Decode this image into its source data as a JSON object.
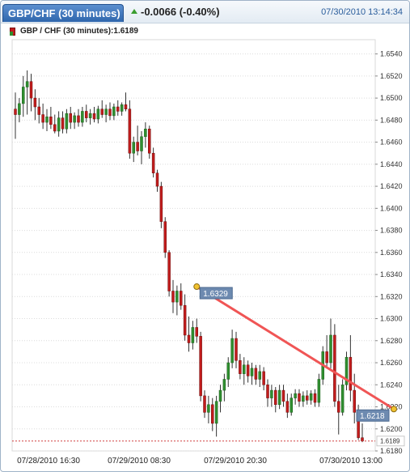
{
  "header": {
    "title": "GBP/CHF (30 minutes)",
    "change": "-0.0066 (-0.40%)",
    "datetime": "07/30/2010 13:14:34"
  },
  "legend": {
    "text": "GBP / CHF (30 minutes):1.6189"
  },
  "colors": {
    "up": "#2f8f2f",
    "down": "#c21c1c",
    "trendline": "#f05555",
    "label_bg": "#6d8ab0",
    "last_price_line": "#d04040"
  },
  "chart_data": {
    "type": "candlestick",
    "title": "GBP / CHF (30 minutes):1.6189",
    "ylim": [
      1.618,
      1.655
    ],
    "y_ticks": [
      "1.6540",
      "1.6520",
      "1.6500",
      "1.6480",
      "1.6460",
      "1.6440",
      "1.6420",
      "1.6400",
      "1.6380",
      "1.6360",
      "1.6340",
      "1.6320",
      "1.6300",
      "1.6280",
      "1.6260",
      "1.6240",
      "1.6220",
      "1.6200",
      "1.6180"
    ],
    "x_labels": [
      "07/28/2010 16:30",
      "07/29/2010 08:30",
      "07/29/2010 20:30",
      "07/30/2010 13:00"
    ],
    "last_price": "1.6189",
    "grid": "horizontal dotted",
    "trendline": {
      "start_label": "1.6329",
      "end_label": "1.6218",
      "start": {
        "candle": 46,
        "value": 1.6329
      },
      "end": {
        "candle": 96,
        "value": 1.6218
      }
    },
    "candles": [
      {
        "o": 1.649,
        "h": 1.6505,
        "l": 1.6463,
        "c": 1.6485
      },
      {
        "o": 1.6485,
        "h": 1.65,
        "l": 1.6478,
        "c": 1.6495
      },
      {
        "o": 1.6495,
        "h": 1.652,
        "l": 1.6483,
        "c": 1.651
      },
      {
        "o": 1.651,
        "h": 1.6525,
        "l": 1.6485,
        "c": 1.6515
      },
      {
        "o": 1.6515,
        "h": 1.6522,
        "l": 1.6488,
        "c": 1.65
      },
      {
        "o": 1.65,
        "h": 1.6508,
        "l": 1.648,
        "c": 1.6492
      },
      {
        "o": 1.6492,
        "h": 1.65,
        "l": 1.6477,
        "c": 1.6485
      },
      {
        "o": 1.6485,
        "h": 1.6495,
        "l": 1.6472,
        "c": 1.6478
      },
      {
        "o": 1.6478,
        "h": 1.649,
        "l": 1.647,
        "c": 1.6483
      },
      {
        "o": 1.6483,
        "h": 1.6492,
        "l": 1.6472,
        "c": 1.6476
      },
      {
        "o": 1.6476,
        "h": 1.6485,
        "l": 1.6468,
        "c": 1.647
      },
      {
        "o": 1.647,
        "h": 1.6488,
        "l": 1.6465,
        "c": 1.6482
      },
      {
        "o": 1.6482,
        "h": 1.6488,
        "l": 1.6468,
        "c": 1.6472
      },
      {
        "o": 1.6472,
        "h": 1.649,
        "l": 1.6468,
        "c": 1.6486
      },
      {
        "o": 1.6486,
        "h": 1.6492,
        "l": 1.6472,
        "c": 1.6478
      },
      {
        "o": 1.6478,
        "h": 1.6487,
        "l": 1.6472,
        "c": 1.6484
      },
      {
        "o": 1.6484,
        "h": 1.649,
        "l": 1.6474,
        "c": 1.6478
      },
      {
        "o": 1.6478,
        "h": 1.6492,
        "l": 1.6474,
        "c": 1.6488
      },
      {
        "o": 1.6488,
        "h": 1.6494,
        "l": 1.6478,
        "c": 1.6482
      },
      {
        "o": 1.6482,
        "h": 1.649,
        "l": 1.6476,
        "c": 1.6486
      },
      {
        "o": 1.6486,
        "h": 1.6492,
        "l": 1.6478,
        "c": 1.6481
      },
      {
        "o": 1.6481,
        "h": 1.6493,
        "l": 1.6477,
        "c": 1.649
      },
      {
        "o": 1.649,
        "h": 1.6498,
        "l": 1.6482,
        "c": 1.6485
      },
      {
        "o": 1.6485,
        "h": 1.6494,
        "l": 1.6478,
        "c": 1.649
      },
      {
        "o": 1.649,
        "h": 1.6496,
        "l": 1.648,
        "c": 1.6484
      },
      {
        "o": 1.6484,
        "h": 1.6495,
        "l": 1.648,
        "c": 1.6492
      },
      {
        "o": 1.6492,
        "h": 1.6498,
        "l": 1.6484,
        "c": 1.6488
      },
      {
        "o": 1.6488,
        "h": 1.6496,
        "l": 1.6484,
        "c": 1.6494
      },
      {
        "o": 1.6494,
        "h": 1.6505,
        "l": 1.6488,
        "c": 1.649
      },
      {
        "o": 1.649,
        "h": 1.6498,
        "l": 1.6445,
        "c": 1.645
      },
      {
        "o": 1.645,
        "h": 1.6465,
        "l": 1.6442,
        "c": 1.646
      },
      {
        "o": 1.646,
        "h": 1.6475,
        "l": 1.6448,
        "c": 1.6452
      },
      {
        "o": 1.6452,
        "h": 1.647,
        "l": 1.644,
        "c": 1.6465
      },
      {
        "o": 1.6465,
        "h": 1.6478,
        "l": 1.6455,
        "c": 1.6472
      },
      {
        "o": 1.6472,
        "h": 1.6475,
        "l": 1.6445,
        "c": 1.645
      },
      {
        "o": 1.645,
        "h": 1.6455,
        "l": 1.6428,
        "c": 1.6432
      },
      {
        "o": 1.6432,
        "h": 1.6435,
        "l": 1.6415,
        "c": 1.642
      },
      {
        "o": 1.642,
        "h": 1.6424,
        "l": 1.6382,
        "c": 1.6388
      },
      {
        "o": 1.6388,
        "h": 1.6392,
        "l": 1.6355,
        "c": 1.636
      },
      {
        "o": 1.636,
        "h": 1.6362,
        "l": 1.632,
        "c": 1.6325
      },
      {
        "o": 1.6325,
        "h": 1.6335,
        "l": 1.6305,
        "c": 1.6315
      },
      {
        "o": 1.6315,
        "h": 1.633,
        "l": 1.6303,
        "c": 1.6325
      },
      {
        "o": 1.6325,
        "h": 1.6332,
        "l": 1.6308,
        "c": 1.6312
      },
      {
        "o": 1.6312,
        "h": 1.6322,
        "l": 1.628,
        "c": 1.6285
      },
      {
        "o": 1.6285,
        "h": 1.6302,
        "l": 1.627,
        "c": 1.6278
      },
      {
        "o": 1.6278,
        "h": 1.6298,
        "l": 1.6272,
        "c": 1.6292
      },
      {
        "o": 1.6292,
        "h": 1.63,
        "l": 1.6278,
        "c": 1.6284
      },
      {
        "o": 1.6284,
        "h": 1.6288,
        "l": 1.6225,
        "c": 1.623
      },
      {
        "o": 1.623,
        "h": 1.6235,
        "l": 1.621,
        "c": 1.6215
      },
      {
        "o": 1.6215,
        "h": 1.623,
        "l": 1.6205,
        "c": 1.6222
      },
      {
        "o": 1.6222,
        "h": 1.6228,
        "l": 1.6198,
        "c": 1.6205
      },
      {
        "o": 1.6205,
        "h": 1.623,
        "l": 1.6193,
        "c": 1.6225
      },
      {
        "o": 1.6225,
        "h": 1.624,
        "l": 1.6215,
        "c": 1.6235
      },
      {
        "o": 1.6235,
        "h": 1.625,
        "l": 1.6225,
        "c": 1.6245
      },
      {
        "o": 1.6245,
        "h": 1.6265,
        "l": 1.6238,
        "c": 1.626
      },
      {
        "o": 1.626,
        "h": 1.629,
        "l": 1.6255,
        "c": 1.6282
      },
      {
        "o": 1.6282,
        "h": 1.6288,
        "l": 1.6255,
        "c": 1.6262
      },
      {
        "o": 1.6262,
        "h": 1.6268,
        "l": 1.6245,
        "c": 1.625
      },
      {
        "o": 1.625,
        "h": 1.6265,
        "l": 1.624,
        "c": 1.6258
      },
      {
        "o": 1.6258,
        "h": 1.6262,
        "l": 1.6242,
        "c": 1.6248
      },
      {
        "o": 1.6248,
        "h": 1.626,
        "l": 1.624,
        "c": 1.6255
      },
      {
        "o": 1.6255,
        "h": 1.6258,
        "l": 1.624,
        "c": 1.6245
      },
      {
        "o": 1.6245,
        "h": 1.6258,
        "l": 1.6238,
        "c": 1.6252
      },
      {
        "o": 1.6252,
        "h": 1.6256,
        "l": 1.6235,
        "c": 1.624
      },
      {
        "o": 1.624,
        "h": 1.6245,
        "l": 1.622,
        "c": 1.6228
      },
      {
        "o": 1.6228,
        "h": 1.624,
        "l": 1.622,
        "c": 1.6235
      },
      {
        "o": 1.6235,
        "h": 1.6238,
        "l": 1.6215,
        "c": 1.6222
      },
      {
        "o": 1.6222,
        "h": 1.624,
        "l": 1.6218,
        "c": 1.6235
      },
      {
        "o": 1.6235,
        "h": 1.624,
        "l": 1.622,
        "c": 1.6225
      },
      {
        "o": 1.6225,
        "h": 1.6232,
        "l": 1.621,
        "c": 1.6215
      },
      {
        "o": 1.6215,
        "h": 1.6232,
        "l": 1.6212,
        "c": 1.6228
      },
      {
        "o": 1.6228,
        "h": 1.6236,
        "l": 1.6222,
        "c": 1.6232
      },
      {
        "o": 1.6232,
        "h": 1.6236,
        "l": 1.622,
        "c": 1.6225
      },
      {
        "o": 1.6225,
        "h": 1.6234,
        "l": 1.622,
        "c": 1.623
      },
      {
        "o": 1.623,
        "h": 1.6235,
        "l": 1.6222,
        "c": 1.6226
      },
      {
        "o": 1.6226,
        "h": 1.6235,
        "l": 1.6222,
        "c": 1.6232
      },
      {
        "o": 1.6232,
        "h": 1.6236,
        "l": 1.622,
        "c": 1.6224
      },
      {
        "o": 1.6224,
        "h": 1.625,
        "l": 1.622,
        "c": 1.6245
      },
      {
        "o": 1.6245,
        "h": 1.6275,
        "l": 1.624,
        "c": 1.627
      },
      {
        "o": 1.627,
        "h": 1.6285,
        "l": 1.6255,
        "c": 1.626
      },
      {
        "o": 1.626,
        "h": 1.63,
        "l": 1.6255,
        "c": 1.6285
      },
      {
        "o": 1.6285,
        "h": 1.6295,
        "l": 1.622,
        "c": 1.6225
      },
      {
        "o": 1.6225,
        "h": 1.624,
        "l": 1.6195,
        "c": 1.6215
      },
      {
        "o": 1.6215,
        "h": 1.6245,
        "l": 1.6212,
        "c": 1.624
      },
      {
        "o": 1.624,
        "h": 1.627,
        "l": 1.6235,
        "c": 1.6265
      },
      {
        "o": 1.6265,
        "h": 1.6285,
        "l": 1.6225,
        "c": 1.6235
      },
      {
        "o": 1.6235,
        "h": 1.625,
        "l": 1.6205,
        "c": 1.6215
      },
      {
        "o": 1.6215,
        "h": 1.6222,
        "l": 1.619,
        "c": 1.6192
      },
      {
        "o": 1.6192,
        "h": 1.6205,
        "l": 1.6188,
        "c": 1.6189
      }
    ]
  }
}
